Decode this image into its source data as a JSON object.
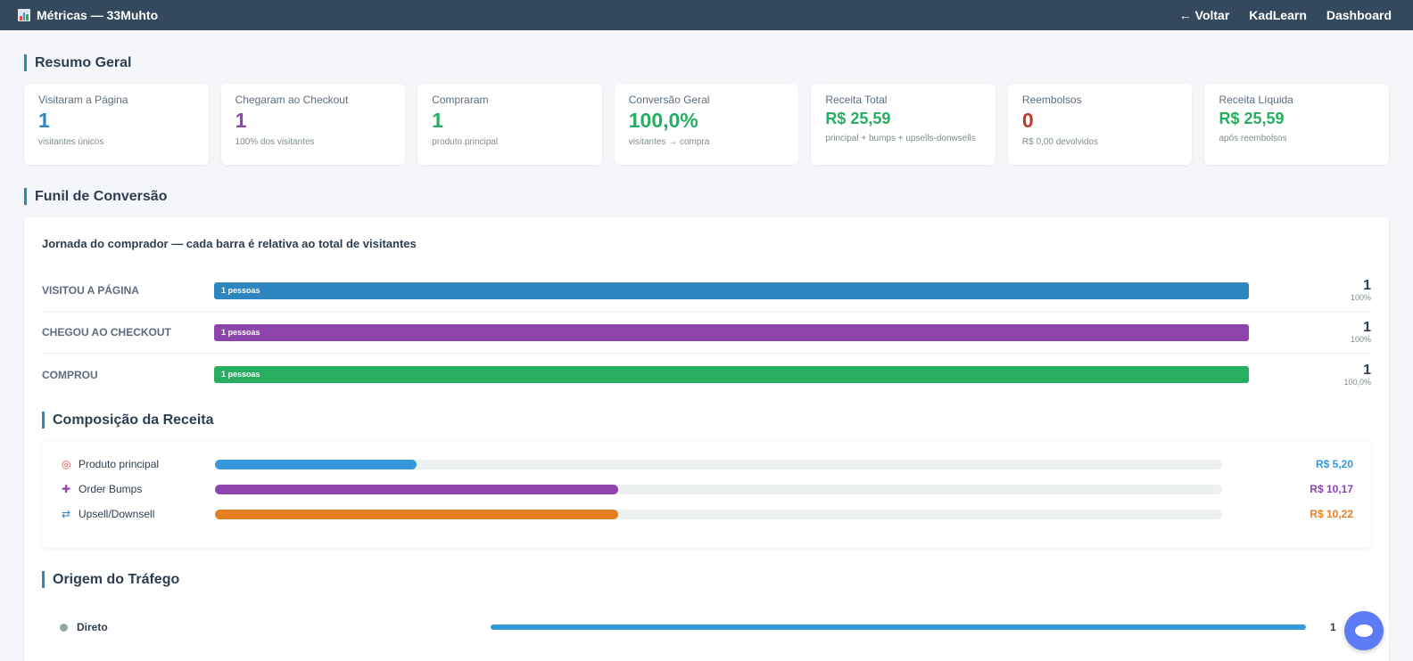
{
  "header": {
    "title": "Métricas — 33Muhto",
    "nav": [
      "← Voltar",
      "KadLearn",
      "Dashboard"
    ]
  },
  "summary": {
    "title": "Resumo Geral",
    "cards": [
      {
        "label": "Visitaram a Página",
        "value": "1",
        "sub": "visitantes únicos",
        "color": "#2e86c1"
      },
      {
        "label": "Chegaram ao Checkout",
        "value": "1",
        "sub": "100% dos visitantes",
        "color": "#8e44ad"
      },
      {
        "label": "Compraram",
        "value": "1",
        "sub": "produto principal",
        "color": "#27ae60"
      },
      {
        "label": "Conversão Geral",
        "value": "100,0%",
        "sub": "visitantes → compra",
        "color": "#27ae60"
      },
      {
        "label": "Receita Total",
        "value": "R$ 25,59",
        "sub": "principal + bumps + upsells-donwsells",
        "color": "#27ae60"
      },
      {
        "label": "Reembolsos",
        "value": "0",
        "sub": "R$ 0,00 devolvidos",
        "color": "#c0392b"
      },
      {
        "label": "Receita Líquida",
        "value": "R$ 25,59",
        "sub": "após reembolsos",
        "color": "#27ae60"
      }
    ]
  },
  "funnel": {
    "title": "Funil de Conversão",
    "heading": "Jornada do comprador — cada barra é relativa ao total de visitantes",
    "rows": [
      {
        "label": "VISITOU A PÁGINA",
        "bar_text": "1 pessoas",
        "count": "1",
        "percent": "100%",
        "fill": 1.0,
        "color": "#2e86c1"
      },
      {
        "label": "CHEGOU AO CHECKOUT",
        "bar_text": "1 pessoas",
        "count": "1",
        "percent": "100%",
        "fill": 1.0,
        "color": "#8e44ad"
      },
      {
        "label": "COMPROU",
        "bar_text": "1 pessoas",
        "count": "1",
        "percent": "100,0%",
        "fill": 1.0,
        "color": "#27ae60"
      }
    ]
  },
  "revenue": {
    "title": "Composição da Receita",
    "rows": [
      {
        "icon": "target-icon",
        "label": "Produto principal",
        "value": "R$ 5,20",
        "fill": 0.2,
        "color": "#3498db"
      },
      {
        "icon": "plus-icon",
        "label": "Order Bumps",
        "value": "R$ 10,17",
        "fill": 0.4,
        "color": "#8e44ad"
      },
      {
        "icon": "shuffle-icon",
        "label": "Upsell/Downsell",
        "value": "R$ 10,22",
        "fill": 0.4,
        "color": "#e67e22"
      }
    ]
  },
  "traffic": {
    "title": "Origem do Tráfego",
    "rows": [
      {
        "label": "Direto",
        "value": "1",
        "fill": 1.0
      }
    ]
  }
}
